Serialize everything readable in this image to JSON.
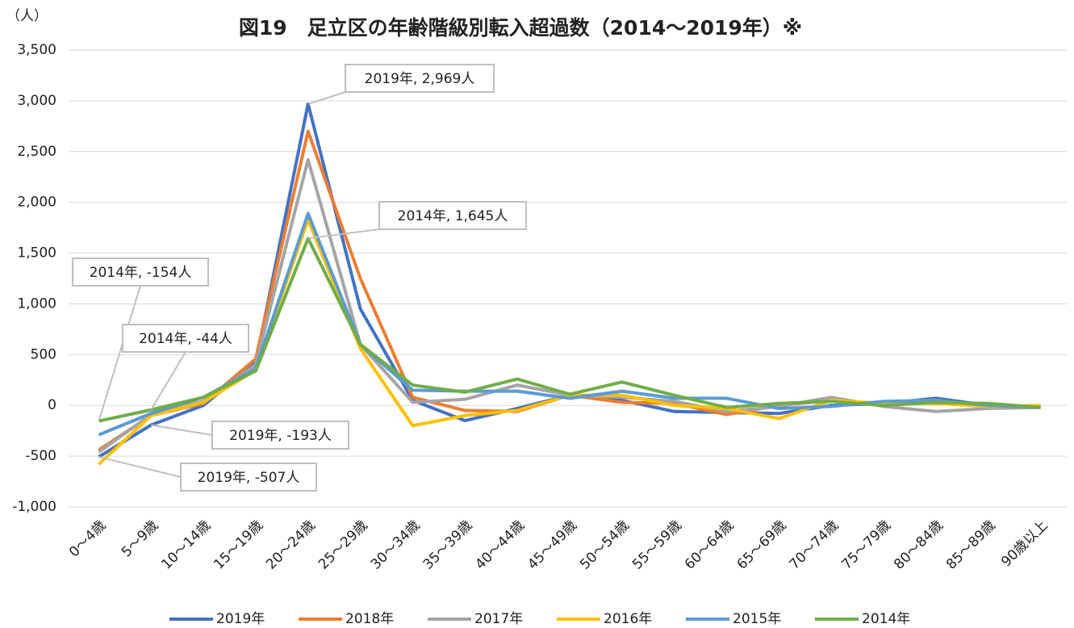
{
  "chart_data": {
    "type": "line",
    "title": "図19　足立区の年齢階級別転入超過数（2014～2019年）※",
    "y_label": "（人）",
    "categories": [
      "0～4歳",
      "5～9歳",
      "10～14歳",
      "15～19歳",
      "20～24歳",
      "25～29歳",
      "30～34歳",
      "35～39歳",
      "40～44歳",
      "45～49歳",
      "50～54歳",
      "55～59歳",
      "60～64歳",
      "65～69歳",
      "70～74歳",
      "75～79歳",
      "80～84歳",
      "85～89歳",
      "90歳以上"
    ],
    "series": [
      {
        "name": "2019年",
        "color": "#4472c4",
        "values": [
          -507,
          -193,
          0,
          420,
          2969,
          950,
          50,
          -150,
          -30,
          100,
          50,
          -60,
          -70,
          -80,
          0,
          20,
          70,
          0,
          -20
        ],
        "value_labels": [
          "2019年, -507人",
          "2019年, -193人",
          null,
          null,
          "2019年, 2,969人",
          null,
          null,
          null,
          null,
          null,
          null,
          null,
          null,
          null,
          null,
          null,
          null,
          null,
          null
        ]
      },
      {
        "name": "2018年",
        "color": "#ed7d31",
        "values": [
          -440,
          -100,
          20,
          460,
          2700,
          1250,
          80,
          -50,
          -60,
          100,
          30,
          20,
          -90,
          0,
          50,
          0,
          30,
          0,
          -10
        ]
      },
      {
        "name": "2017年",
        "color": "#a5a5a5",
        "values": [
          -460,
          -90,
          40,
          400,
          2420,
          600,
          30,
          60,
          200,
          100,
          80,
          40,
          -60,
          -10,
          80,
          -10,
          -60,
          -30,
          -20
        ]
      },
      {
        "name": "2016年",
        "color": "#ffc000",
        "values": [
          -580,
          -100,
          30,
          350,
          1830,
          560,
          -200,
          -100,
          -50,
          100,
          100,
          0,
          -30,
          -130,
          50,
          20,
          20,
          -10,
          0
        ]
      },
      {
        "name": "2015年",
        "color": "#5b9bd5",
        "values": [
          -290,
          -80,
          80,
          360,
          1890,
          600,
          150,
          140,
          140,
          70,
          140,
          70,
          70,
          -30,
          -10,
          40,
          50,
          0,
          -20
        ]
      },
      {
        "name": "2014年",
        "color": "#70ad47",
        "values": [
          -154,
          -44,
          80,
          340,
          1645,
          600,
          200,
          130,
          260,
          110,
          230,
          100,
          -20,
          20,
          40,
          0,
          30,
          20,
          -20
        ],
        "value_labels": [
          "2014年, -154人",
          "2014年, -44人",
          null,
          null,
          "2014年, 1,645人",
          null,
          null,
          null,
          null,
          null,
          null,
          null,
          null,
          null,
          null,
          null,
          null,
          null,
          null
        ]
      }
    ],
    "ylim": [
      -1000,
      3500
    ],
    "yticks": [
      {
        "value": -1000,
        "label": "-1,000"
      },
      -500,
      0,
      500,
      {
        "value": 1000,
        "label": "1,000"
      },
      {
        "value": 1500,
        "label": "1,500"
      },
      {
        "value": 2000,
        "label": "2,000"
      },
      {
        "value": 2500,
        "label": "2,500"
      },
      {
        "value": 3000,
        "label": "3,000"
      },
      {
        "value": 3500,
        "label": "3,500"
      }
    ],
    "grid": true,
    "legend": "bottom"
  }
}
